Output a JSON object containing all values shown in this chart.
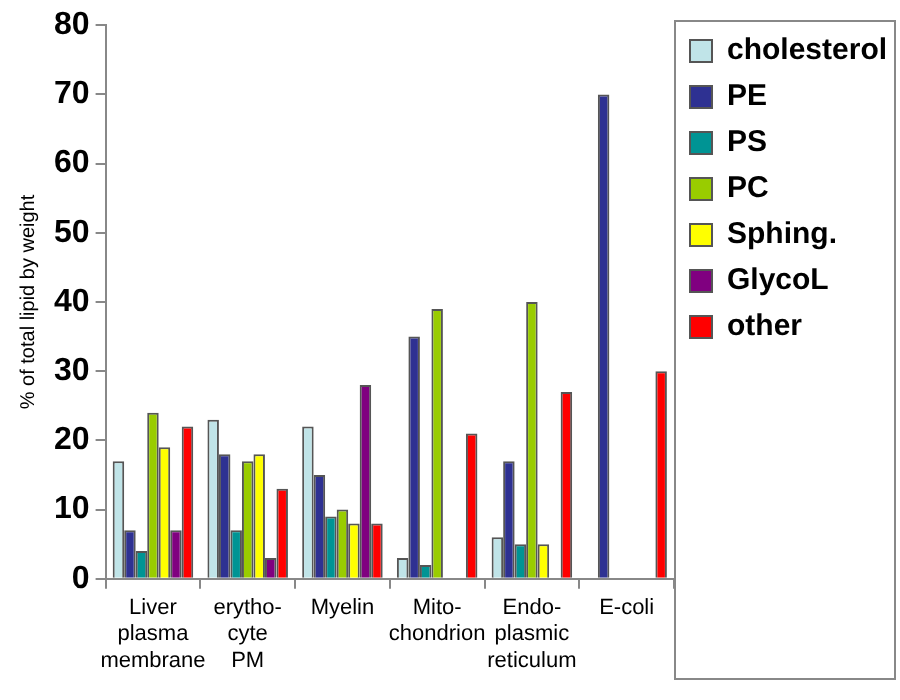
{
  "chart_data": {
    "type": "bar",
    "ylabel": "% of total lipid by weight",
    "categories": [
      "Liver plasma membrane",
      "erytho-cyte PM",
      "Myelin",
      "Mito-chondrion",
      "Endo-plasmic reticulum",
      "E-coli"
    ],
    "series": [
      {
        "name": "cholesterol",
        "color": "#c0e4e8",
        "values": [
          17,
          23,
          22,
          3,
          6,
          0
        ]
      },
      {
        "name": "PE",
        "color": "#2e3192",
        "values": [
          7,
          18,
          15,
          35,
          17,
          70
        ]
      },
      {
        "name": "PS",
        "color": "#009494",
        "values": [
          4,
          7,
          9,
          2,
          5,
          0
        ]
      },
      {
        "name": "PC",
        "color": "#99cc00",
        "values": [
          24,
          17,
          10,
          39,
          40,
          0
        ]
      },
      {
        "name": "Sphing.",
        "color": "#ffff00",
        "values": [
          19,
          18,
          8,
          0,
          5,
          0
        ]
      },
      {
        "name": "GlycoL",
        "color": "#800080",
        "values": [
          7,
          3,
          28,
          0,
          0,
          0
        ]
      },
      {
        "name": "other",
        "color": "#ff0000",
        "values": [
          22,
          13,
          8,
          21,
          27,
          30
        ]
      }
    ],
    "ylim": [
      0,
      80
    ],
    "yticks": [
      0,
      10,
      20,
      30,
      40,
      50,
      60,
      70,
      80
    ],
    "grid": false,
    "legend": "right"
  }
}
